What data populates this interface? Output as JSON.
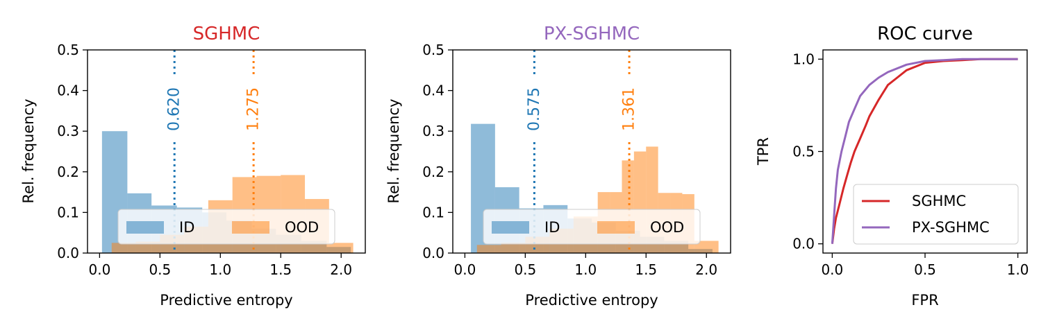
{
  "colors": {
    "id": "#1f77b4",
    "ood": "#ff7f0e",
    "sghmc": "#d62728",
    "px_sghmc": "#9467bd"
  },
  "chart_data": [
    {
      "type": "bar",
      "title": "SGHMC",
      "title_color": "#d62728",
      "xlabel": "Predictive entropy",
      "ylabel": "Rel. frequency",
      "xlim": [
        -0.1,
        2.2
      ],
      "ylim": [
        0,
        0.5
      ],
      "xticks": [
        0.0,
        0.5,
        1.0,
        1.5,
        2.0
      ],
      "xtick_labels": [
        "0.0",
        "0.5",
        "1.0",
        "1.5",
        "2.0"
      ],
      "yticks": [
        0.0,
        0.1,
        0.2,
        0.3,
        0.4,
        0.5
      ],
      "ytick_labels": [
        "0.0",
        "0.1",
        "0.2",
        "0.3",
        "0.4",
        "0.5"
      ],
      "legend_position": "lower center",
      "series": [
        {
          "name": "ID",
          "color": "#1f77b4",
          "bins": [
            0.02,
            0.23,
            0.43,
            0.64,
            0.85,
            1.05,
            1.26,
            1.46,
            1.67,
            1.88,
            2.08
          ],
          "values": [
            0.3,
            0.147,
            0.117,
            0.112,
            0.1,
            0.08,
            0.06,
            0.045,
            0.03,
            0.015
          ]
        },
        {
          "name": "OOD",
          "color": "#ff7f0e",
          "bins": [
            0.1,
            0.3,
            0.5,
            0.7,
            0.9,
            1.1,
            1.3,
            1.5,
            1.7,
            1.9,
            2.1
          ],
          "values": [
            0.025,
            0.028,
            0.045,
            0.065,
            0.13,
            0.187,
            0.19,
            0.192,
            0.133,
            0.025
          ]
        }
      ],
      "vlines": [
        {
          "series": "ID",
          "value": 0.62,
          "label": "0.620"
        },
        {
          "series": "OOD",
          "value": 1.275,
          "label": "1.275"
        }
      ]
    },
    {
      "type": "bar",
      "title": "PX-SGHMC",
      "title_color": "#9467bd",
      "xlabel": "Predictive entropy",
      "ylabel": "Rel. frequency",
      "xlim": [
        -0.1,
        2.2
      ],
      "ylim": [
        0,
        0.5
      ],
      "xticks": [
        0.0,
        0.5,
        1.0,
        1.5,
        2.0
      ],
      "xtick_labels": [
        "0.0",
        "0.5",
        "1.0",
        "1.5",
        "2.0"
      ],
      "yticks": [
        0.0,
        0.1,
        0.2,
        0.3,
        0.4,
        0.5
      ],
      "ytick_labels": [
        "0.0",
        "0.1",
        "0.2",
        "0.3",
        "0.4",
        "0.5"
      ],
      "legend_position": "lower center",
      "series": [
        {
          "name": "ID",
          "color": "#1f77b4",
          "bins": [
            0.05,
            0.25,
            0.45,
            0.65,
            0.85,
            1.05,
            1.25,
            1.45,
            1.65,
            1.85,
            2.05
          ],
          "values": [
            0.318,
            0.162,
            0.11,
            0.118,
            0.085,
            0.075,
            0.055,
            0.04,
            0.03,
            0.01
          ]
        },
        {
          "name": "OOD",
          "color": "#ff7f0e",
          "bins": [
            0.1,
            0.3,
            0.5,
            0.7,
            0.9,
            1.1,
            1.2,
            1.3,
            1.4,
            1.5,
            1.6,
            1.7,
            1.8,
            1.9,
            2.1
          ],
          "values": [
            0.02,
            0.025,
            0.04,
            0.06,
            0.09,
            0.15,
            0.15,
            0.228,
            0.25,
            0.262,
            0.148,
            0.148,
            0.145,
            0.03
          ]
        }
      ],
      "vlines": [
        {
          "series": "ID",
          "value": 0.575,
          "label": "0.575"
        },
        {
          "series": "OOD",
          "value": 1.361,
          "label": "1.361"
        }
      ]
    },
    {
      "type": "line",
      "title": "ROC curve",
      "title_color": "#000000",
      "xlabel": "FPR",
      "ylabel": "TPR",
      "xlim": [
        -0.05,
        1.05
      ],
      "ylim": [
        -0.05,
        1.05
      ],
      "xticks": [
        0.0,
        0.5,
        1.0
      ],
      "xtick_labels": [
        "0.0",
        "0.5",
        "1.0"
      ],
      "yticks": [
        0.0,
        0.5,
        1.0
      ],
      "ytick_labels": [
        "0.0",
        "0.5",
        "1.0"
      ],
      "legend_position": "lower right",
      "series": [
        {
          "name": "SGHMC",
          "color": "#d62728",
          "x": [
            0.0,
            0.01,
            0.02,
            0.04,
            0.06,
            0.08,
            0.1,
            0.12,
            0.15,
            0.18,
            0.2,
            0.25,
            0.3,
            0.35,
            0.4,
            0.5,
            0.6,
            0.7,
            0.8,
            0.9,
            1.0
          ],
          "y": [
            0.0,
            0.08,
            0.14,
            0.22,
            0.3,
            0.37,
            0.44,
            0.5,
            0.57,
            0.64,
            0.69,
            0.78,
            0.86,
            0.9,
            0.94,
            0.98,
            0.99,
            0.995,
            1.0,
            1.0,
            1.0
          ]
        },
        {
          "name": "PX-SGHMC",
          "color": "#9467bd",
          "x": [
            0.0,
            0.01,
            0.02,
            0.03,
            0.05,
            0.07,
            0.09,
            0.12,
            0.15,
            0.2,
            0.25,
            0.3,
            0.4,
            0.5,
            0.6,
            0.7,
            0.8,
            1.0
          ],
          "y": [
            0.0,
            0.15,
            0.3,
            0.4,
            0.5,
            0.58,
            0.66,
            0.73,
            0.8,
            0.86,
            0.9,
            0.93,
            0.97,
            0.99,
            0.995,
            1.0,
            1.0,
            1.0
          ]
        }
      ]
    }
  ]
}
